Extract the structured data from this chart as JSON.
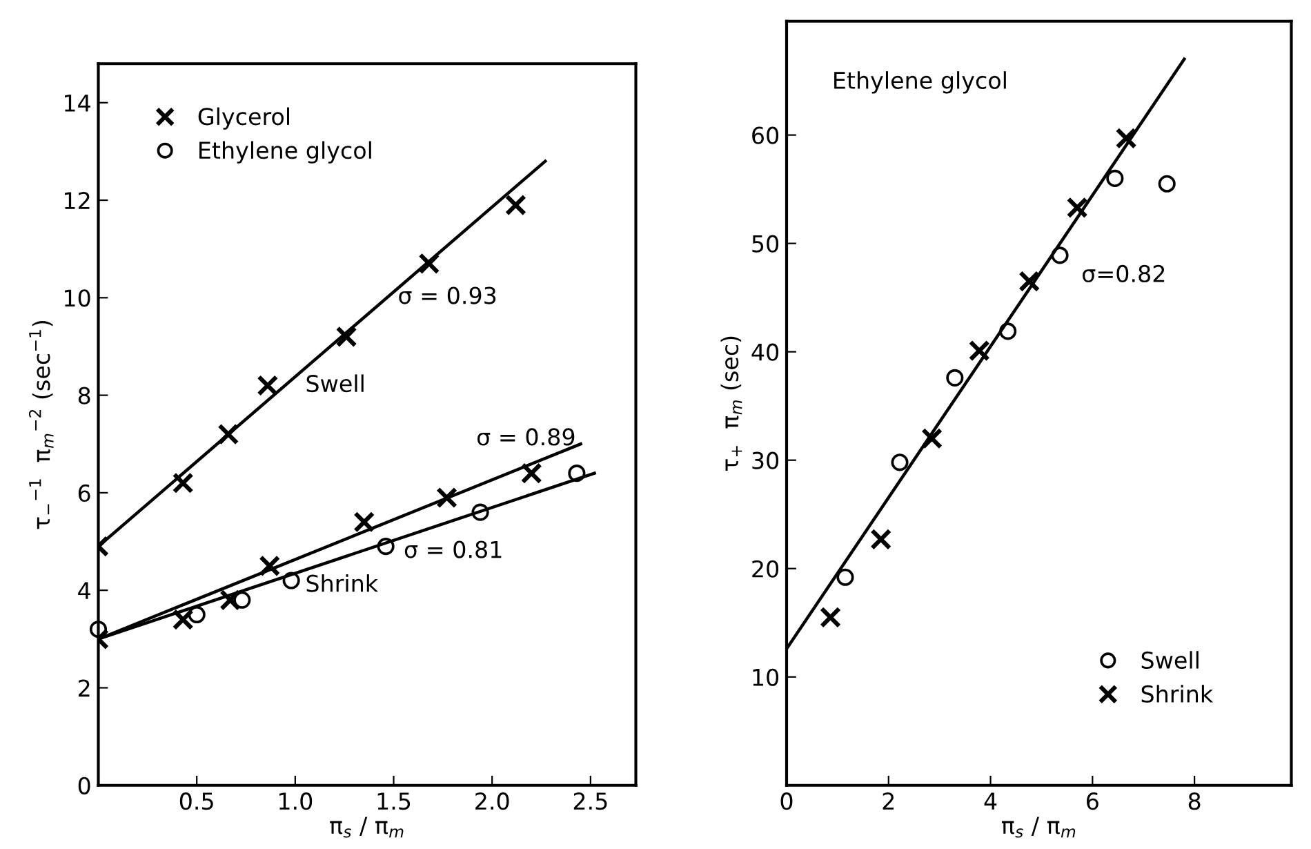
{
  "chart_data": [
    {
      "type": "scatter",
      "xlabel": "π$_{s}$ / π$_{m}$",
      "ylabel": "τ$_{−}$$^{−1}$  π$_{m}$$^{−2}$ (sec$^{−1}$)",
      "xlim": [
        0,
        2.73
      ],
      "ylim": [
        0,
        14.8
      ],
      "xticks": [
        0.5,
        {
          "value": 1,
          "label": "1.0"
        },
        1.5,
        {
          "value": 2,
          "label": "2.0"
        },
        2.5
      ],
      "yticks": [
        0,
        2,
        4,
        6,
        8,
        10,
        12,
        14
      ],
      "legend": "top left",
      "grid": false,
      "series": [
        {
          "name": "Glycerol",
          "marker": "cross",
          "color": "#000000",
          "x": [
            0,
            0.43,
            0.66,
            0.86,
            1.26,
            1.68,
            2.12
          ],
          "values": [
            4.9,
            6.2,
            7.2,
            8.2,
            9.2,
            10.7,
            11.9
          ]
        },
        {
          "marker": "cross",
          "color": "#000000",
          "x": [
            0,
            0.43,
            0.67,
            0.87,
            1.35,
            1.77,
            2.2
          ],
          "values": [
            3.0,
            3.4,
            3.8,
            4.5,
            5.4,
            5.9,
            6.4
          ]
        },
        {
          "name": "Ethylene glycol",
          "marker": "circle",
          "color": "#000000",
          "x": [
            0,
            0.5,
            0.73,
            0.98,
            1.46,
            1.94,
            2.43
          ],
          "values": [
            3.2,
            3.5,
            3.8,
            4.2,
            4.9,
            5.6,
            6.4
          ]
        },
        {
          "type": "line",
          "marker": "none",
          "color": "#000000",
          "x": [
            0,
            2.27
          ],
          "values": [
            4.9,
            12.8
          ]
        },
        {
          "type": "line",
          "marker": "none",
          "color": "#000000",
          "x": [
            0,
            2.45
          ],
          "values": [
            3.0,
            7.0
          ]
        },
        {
          "type": "line",
          "marker": "none",
          "color": "#000000",
          "x": [
            0,
            2.52
          ],
          "values": [
            3.0,
            6.4
          ]
        }
      ],
      "annotations": [
        "σ = 0.93",
        "Swell",
        "σ = 0.89",
        "σ = 0.81",
        "Shrink"
      ]
    },
    {
      "type": "scatter",
      "xlabel": "π$_{s}$ / π$_{m}$",
      "ylabel": "τ$_{+}$  π$_{m}$ (sec)",
      "xlim": [
        0,
        9.9
      ],
      "ylim": [
        0,
        70.5
      ],
      "xticks": [
        0,
        2,
        4,
        6,
        8
      ],
      "yticks": [
        10,
        20,
        30,
        40,
        50,
        60
      ],
      "legend": "bottom right",
      "grid": false,
      "series": [
        {
          "name": "Swell",
          "marker": "circle",
          "color": "#000000",
          "x": [
            1.15,
            2.22,
            3.3,
            4.34,
            5.36,
            6.44,
            7.46
          ],
          "values": [
            19.2,
            29.8,
            37.6,
            41.9,
            48.9,
            56.0,
            55.5
          ]
        },
        {
          "name": "Shrink",
          "marker": "cross",
          "color": "#000000",
          "x": [
            0.86,
            1.85,
            2.85,
            3.78,
            4.76,
            5.7,
            6.66
          ],
          "values": [
            15.5,
            22.7,
            32.0,
            40.1,
            46.5,
            53.3,
            59.7
          ]
        },
        {
          "type": "line",
          "marker": "none",
          "color": "#000000",
          "x": [
            0,
            7.8
          ],
          "values": [
            12.6,
            67.0
          ]
        }
      ],
      "annotations": [
        "Ethylene glycol",
        "σ=0.82"
      ]
    }
  ]
}
